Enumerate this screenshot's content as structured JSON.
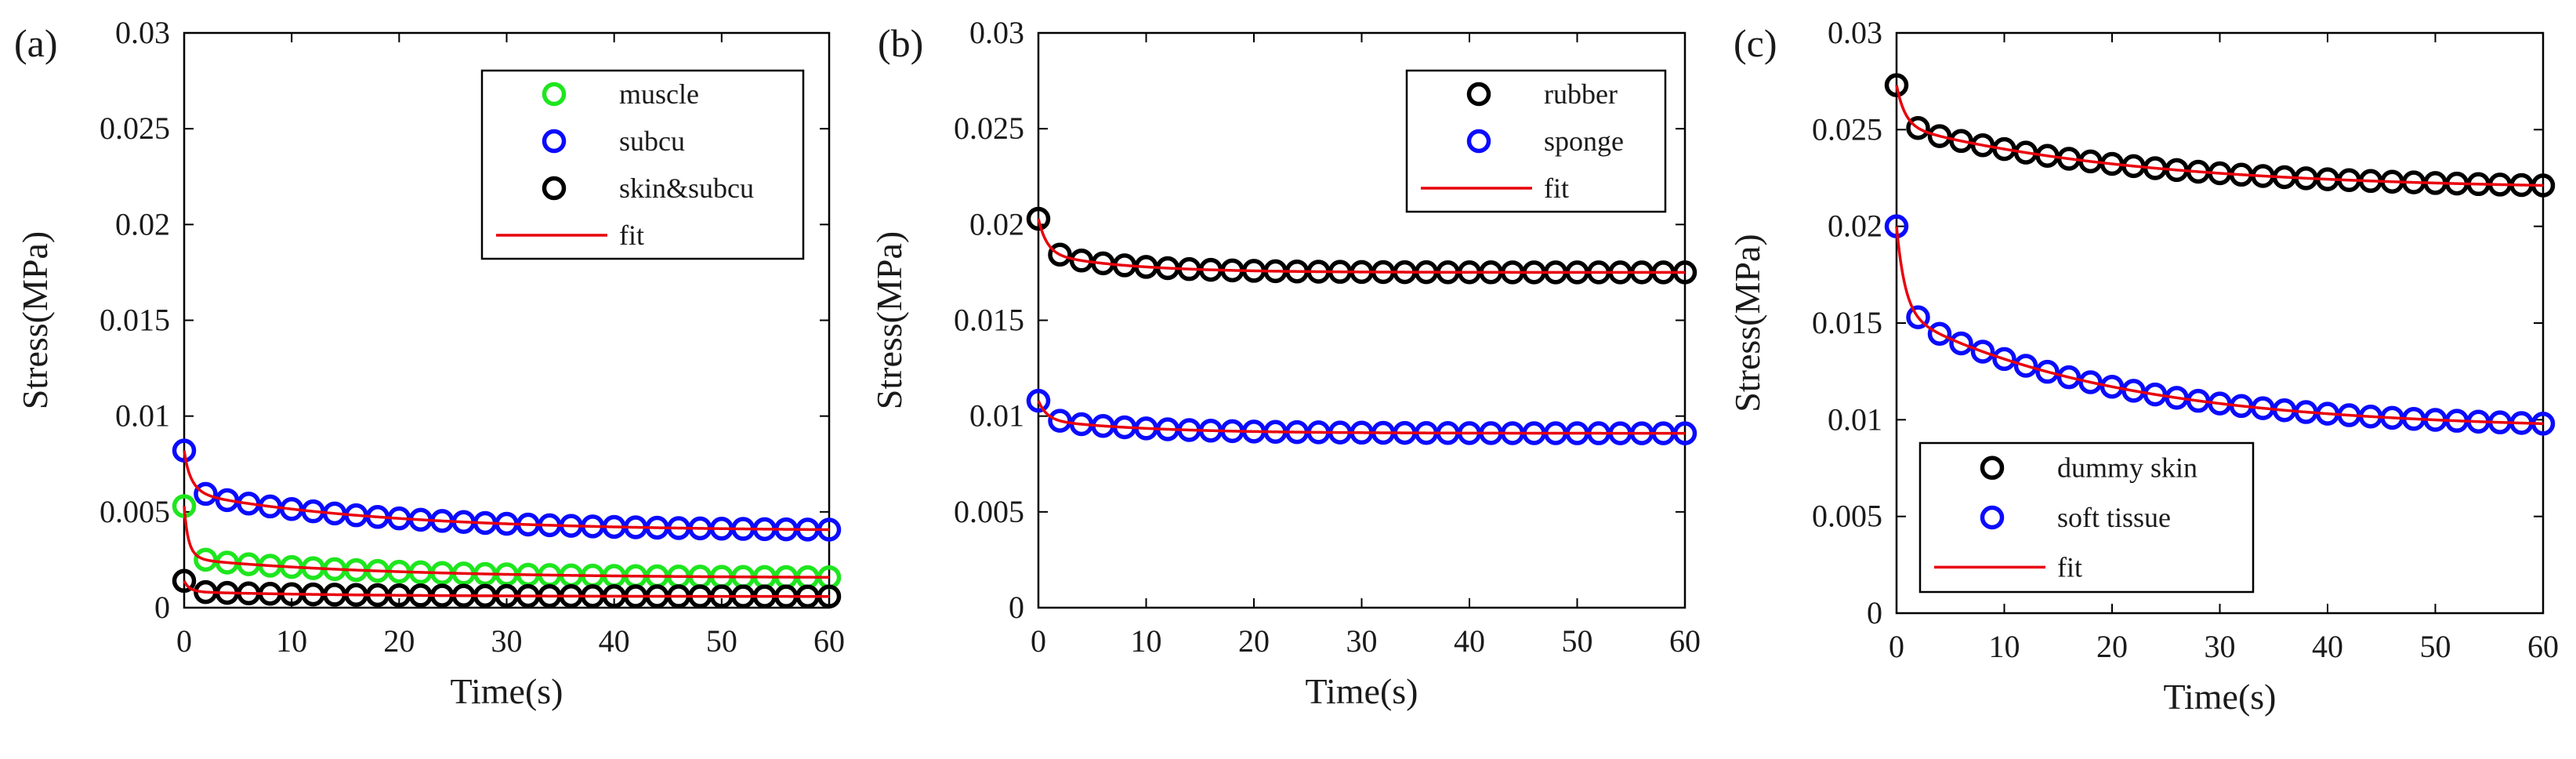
{
  "colors": {
    "black_series": "#000000",
    "blue_series": "#0b0bff",
    "green_series": "#1ee61e",
    "fit_line": "#e8000b",
    "axis": "#000000"
  },
  "chart_data": [
    {
      "panel_label": "(a)",
      "type": "line",
      "xlabel": "Time(s)",
      "ylabel": "Stress(MPa)",
      "xlim": [
        0,
        60
      ],
      "ylim": [
        0,
        0.03
      ],
      "x_ticks": [
        "0",
        "10",
        "20",
        "30",
        "40",
        "50",
        "60"
      ],
      "y_ticks": [
        "0",
        "0.005",
        "0.01",
        "0.015",
        "0.02",
        "0.025",
        "0.03"
      ],
      "grid": false,
      "legend": {
        "position": "top-right",
        "entries": [
          {
            "label": "muscle",
            "color": "green_series",
            "kind": "marker"
          },
          {
            "label": "subcu",
            "color": "blue_series",
            "kind": "marker"
          },
          {
            "label": "skin&subcu",
            "color": "black_series",
            "kind": "marker"
          },
          {
            "label": "fit",
            "color": "fit_line",
            "kind": "line"
          }
        ]
      },
      "series": [
        {
          "name": "muscle",
          "color": "green_series",
          "model": {
            "s0": 0.0053,
            "sinf": 0.00155,
            "a1": 0.0016,
            "tau1": 0.6,
            "a2": 0.001,
            "tau2": 18
          }
        },
        {
          "name": "subcu",
          "color": "blue_series",
          "model": {
            "s0": 0.0082,
            "sinf": 0.004,
            "a1": 0.0018,
            "tau1": 0.8,
            "a2": 0.002,
            "tau2": 18
          }
        },
        {
          "name": "skin&subcu",
          "color": "black_series",
          "model": {
            "s0": 0.0014,
            "sinf": 0.00058,
            "a1": 0.00045,
            "tau1": 0.6,
            "a2": 0.00025,
            "tau2": 15
          }
        }
      ]
    },
    {
      "panel_label": "(b)",
      "type": "line",
      "xlabel": "Time(s)",
      "ylabel": "Stress(MPa)",
      "xlim": [
        0,
        60
      ],
      "ylim": [
        0,
        0.03
      ],
      "x_ticks": [
        "0",
        "10",
        "20",
        "30",
        "40",
        "50",
        "60"
      ],
      "y_ticks": [
        "0",
        "0.005",
        "0.01",
        "0.015",
        "0.02",
        "0.025",
        "0.03"
      ],
      "grid": false,
      "legend": {
        "position": "top-right",
        "entries": [
          {
            "label": "rubber",
            "color": "black_series",
            "kind": "marker"
          },
          {
            "label": "sponge",
            "color": "blue_series",
            "kind": "marker"
          },
          {
            "label": "fit",
            "color": "fit_line",
            "kind": "line"
          }
        ]
      },
      "series": [
        {
          "name": "rubber",
          "color": "black_series",
          "model": {
            "s0": 0.0203,
            "sinf": 0.0175,
            "a1": 0.0018,
            "tau1": 0.8,
            "a2": 0.001,
            "tau2": 8
          }
        },
        {
          "name": "sponge",
          "color": "blue_series",
          "model": {
            "s0": 0.0108,
            "sinf": 0.0091,
            "a1": 0.001,
            "tau1": 0.8,
            "a2": 0.0007,
            "tau2": 10
          }
        }
      ]
    },
    {
      "panel_label": "(c)",
      "type": "line",
      "xlabel": "Time(s)",
      "ylabel": "Stress(MPa)",
      "xlim": [
        0,
        60
      ],
      "ylim": [
        0,
        0.03
      ],
      "x_ticks": [
        "0",
        "10",
        "20",
        "30",
        "40",
        "50",
        "60"
      ],
      "y_ticks": [
        "0",
        "0.005",
        "0.01",
        "0.015",
        "0.02",
        "0.025",
        "0.03"
      ],
      "grid": false,
      "legend": {
        "position": "bottom-left",
        "entries": [
          {
            "label": "dummy skin",
            "color": "black_series",
            "kind": "marker"
          },
          {
            "label": "soft tissue",
            "color": "blue_series",
            "kind": "marker"
          },
          {
            "label": "fit",
            "color": "fit_line",
            "kind": "line"
          }
        ]
      },
      "series": [
        {
          "name": "dummy skin",
          "color": "black_series",
          "model": {
            "s0": 0.0273,
            "sinf": 0.0219,
            "a1": 0.0021,
            "tau1": 0.8,
            "a2": 0.0033,
            "tau2": 22
          }
        },
        {
          "name": "soft tissue",
          "color": "blue_series",
          "model": {
            "s0": 0.02,
            "sinf": 0.0095,
            "a1": 0.0045,
            "tau1": 0.8,
            "a2": 0.006,
            "tau2": 20
          }
        }
      ]
    }
  ]
}
